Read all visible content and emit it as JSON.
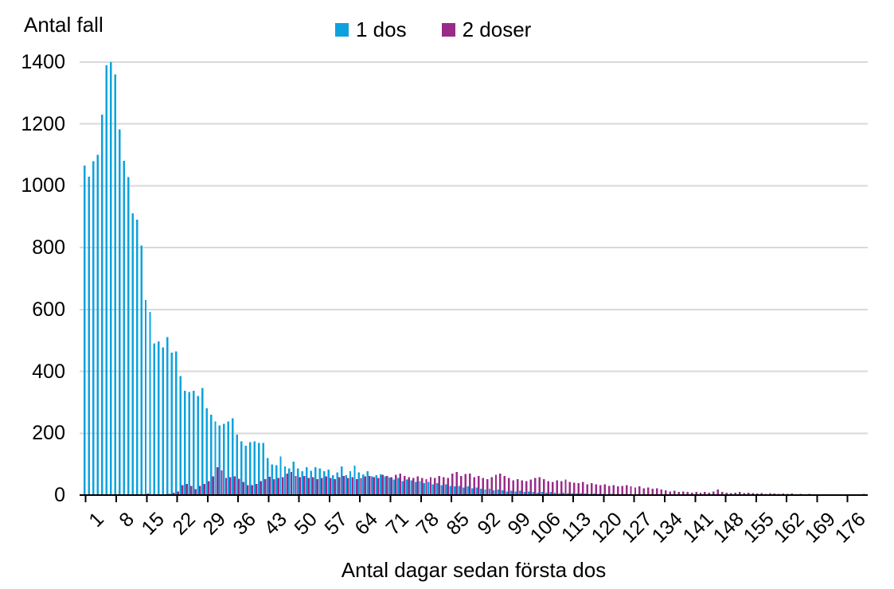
{
  "colors": {
    "background": "#FFFFFF",
    "grid": "#D9D9D9",
    "axis": "#000000",
    "text": "#000000"
  },
  "chart_data": {
    "type": "bar",
    "title": "Antal fall",
    "xlabel": "Antal dagar sedan första dos",
    "ylabel": "Antal fall",
    "grid": "horizontal",
    "legend_position": "top",
    "ylim": [
      0,
      1400
    ],
    "y_ticks": [
      0,
      200,
      400,
      600,
      800,
      1000,
      1200,
      1400
    ],
    "x_days_from": 1,
    "x_days_to": 180,
    "x_tick_labels": [
      1,
      8,
      15,
      22,
      29,
      36,
      43,
      50,
      57,
      64,
      71,
      78,
      85,
      92,
      99,
      106,
      113,
      120,
      127,
      134,
      141,
      148,
      155,
      162,
      169,
      176
    ],
    "series": [
      {
        "name": "1 dos",
        "color": "#0DA2DE",
        "values": [
          1065,
          1030,
          1080,
          1100,
          1230,
          1390,
          1400,
          1360,
          1183,
          1081,
          1028,
          911,
          890,
          807,
          631,
          592,
          490,
          497,
          478,
          511,
          461,
          465,
          385,
          337,
          333,
          337,
          320,
          346,
          281,
          260,
          238,
          225,
          230,
          238,
          249,
          195,
          174,
          159,
          171,
          174,
          169,
          168,
          120,
          99,
          96,
          125,
          93,
          86,
          108,
          86,
          77,
          90,
          79,
          90,
          86,
          77,
          82,
          64,
          73,
          93,
          64,
          77,
          95,
          73,
          67,
          77,
          60,
          64,
          67,
          60,
          56,
          50,
          55,
          45,
          50,
          48,
          42,
          45,
          38,
          42,
          35,
          38,
          32,
          35,
          30,
          28,
          30,
          25,
          28,
          22,
          25,
          20,
          18,
          20,
          15,
          18,
          15,
          12,
          14,
          12,
          14,
          10,
          12,
          10,
          8,
          10,
          8,
          10,
          8,
          6,
          8,
          6,
          6,
          5,
          6,
          5,
          4,
          5,
          4,
          4,
          3,
          4,
          3,
          3,
          4,
          3,
          3,
          2,
          3,
          2,
          2,
          3,
          2,
          2,
          2,
          2,
          1,
          2,
          1,
          2,
          1,
          1,
          2,
          1,
          1,
          1,
          1,
          1,
          1,
          1,
          0,
          1,
          1,
          0,
          1,
          0,
          1,
          0,
          1,
          0,
          1,
          0,
          0,
          1,
          0,
          0,
          1,
          0,
          0,
          0,
          0,
          1,
          0,
          0,
          0,
          1,
          0,
          0,
          0,
          4
        ]
      },
      {
        "name": "2 doser",
        "color": "#992B89",
        "values": [
          0,
          0,
          0,
          0,
          0,
          0,
          0,
          0,
          0,
          0,
          0,
          0,
          0,
          0,
          5,
          2,
          2,
          3,
          3,
          4,
          8,
          12,
          32,
          36,
          30,
          19,
          30,
          36,
          45,
          60,
          90,
          80,
          55,
          58,
          60,
          53,
          43,
          32,
          32,
          36,
          45,
          51,
          59,
          52,
          55,
          58,
          70,
          75,
          62,
          58,
          62,
          55,
          58,
          52,
          55,
          60,
          55,
          52,
          58,
          62,
          55,
          58,
          52,
          55,
          60,
          62,
          58,
          55,
          65,
          62,
          58,
          65,
          70,
          62,
          58,
          55,
          60,
          55,
          52,
          58,
          55,
          62,
          58,
          55,
          70,
          75,
          62,
          68,
          70,
          58,
          62,
          55,
          52,
          58,
          65,
          70,
          62,
          55,
          48,
          52,
          48,
          45,
          50,
          55,
          58,
          52,
          45,
          42,
          48,
          45,
          50,
          42,
          40,
          38,
          42,
          35,
          38,
          35,
          32,
          35,
          30,
          32,
          28,
          30,
          32,
          28,
          25,
          28,
          22,
          25,
          20,
          22,
          18,
          15,
          12,
          14,
          10,
          12,
          10,
          8,
          10,
          8,
          10,
          8,
          12,
          18,
          10,
          8,
          6,
          8,
          10,
          6,
          8,
          6,
          5,
          6,
          4,
          6,
          5,
          4,
          5,
          4,
          5,
          3,
          4,
          3,
          4,
          3,
          3,
          2,
          3,
          2,
          3,
          2,
          2,
          2,
          3,
          2,
          2,
          3
        ]
      }
    ]
  }
}
